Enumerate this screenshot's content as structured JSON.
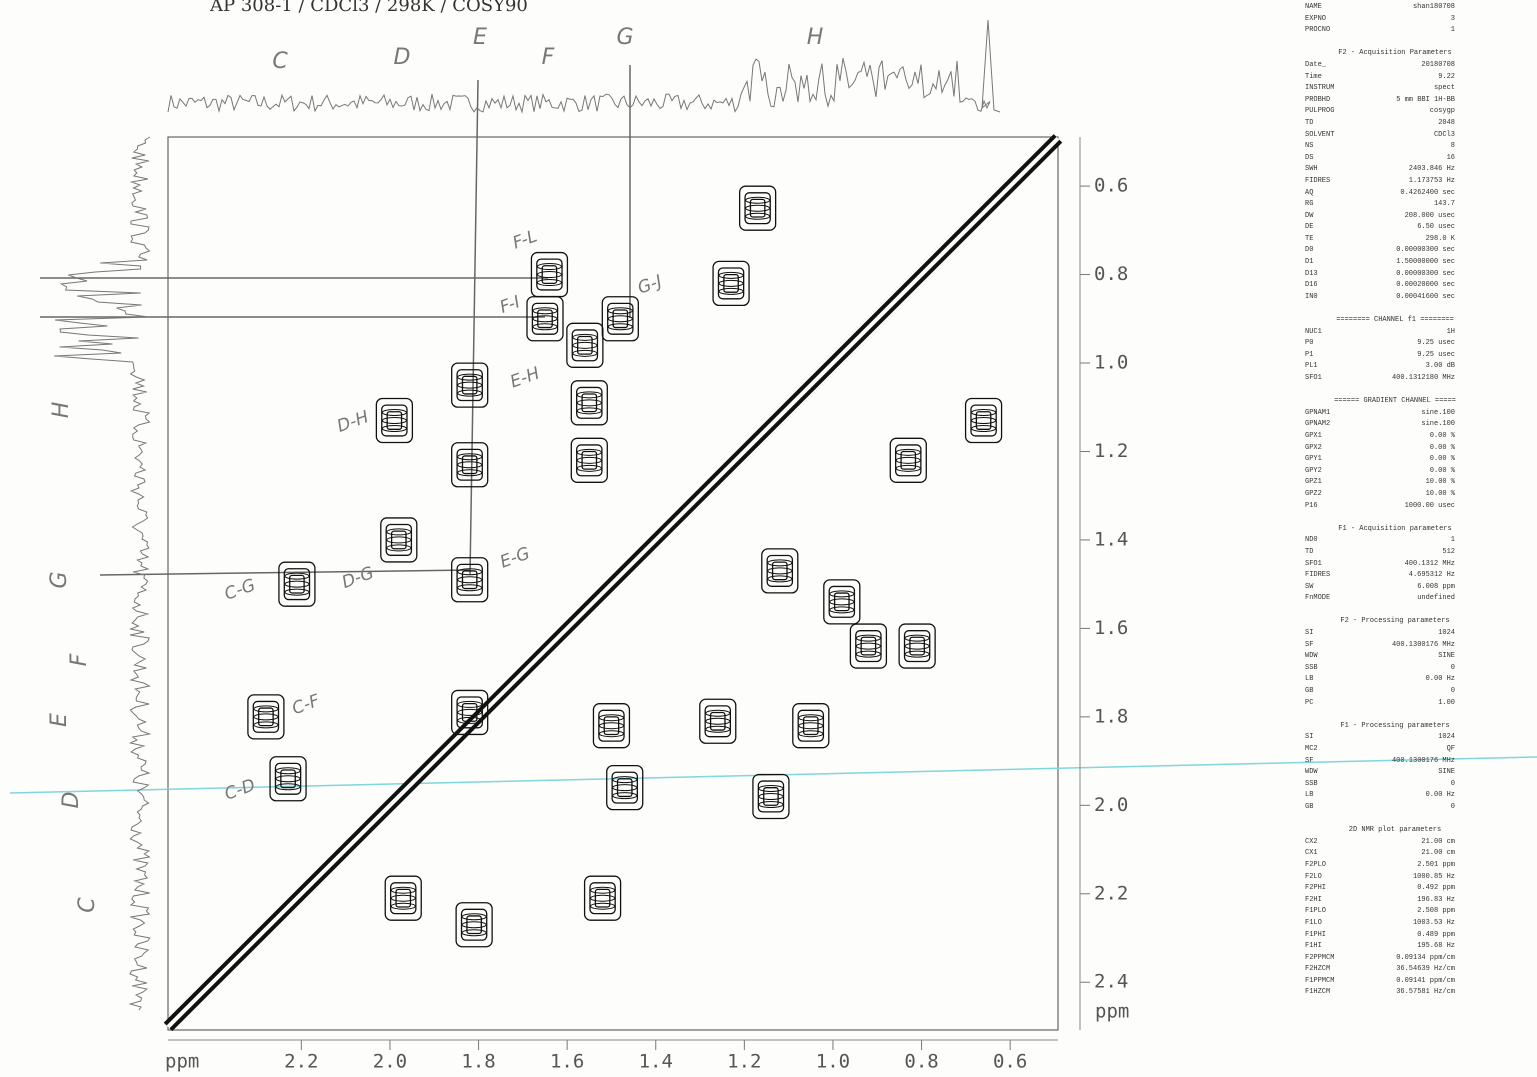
{
  "chart_data": {
    "type": "contour",
    "title": "AP 308-1 / CDCl3 / 298K / COSY90",
    "x_label": "ppm",
    "y_label": "ppm",
    "xlim": [
      2.501,
      0.492
    ],
    "ylim": [
      0.489,
      2.508
    ],
    "xticks": [
      2.2,
      {
        "value": 2,
        "label": "2.0"
      },
      1.8,
      1.6,
      1.4,
      1.2,
      {
        "value": 1,
        "label": "1.0"
      },
      0.8,
      0.6
    ],
    "yticks": [
      0.6,
      0.8,
      {
        "value": 1,
        "label": "1.0"
      },
      1.2,
      1.4,
      1.6,
      1.8,
      {
        "value": 2,
        "label": "2.0"
      },
      2.2,
      2.4
    ],
    "color": "#111111",
    "peaks": {
      "x": [
        1.64,
        1.65,
        1.56,
        1.48,
        1.23,
        1.82,
        1.99,
        1.82,
        1.98,
        1.82,
        2.21,
        1.82,
        2.28,
        2.23,
        1.5,
        1.26,
        1.05,
        1.47,
        1.14,
        1.52,
        1.81,
        1.97,
        0.83,
        0.81,
        0.92,
        0.66,
        1.17,
        1.55,
        1.55,
        1.12,
        0.98
      ],
      "y": [
        0.8,
        0.9,
        0.96,
        0.9,
        0.82,
        1.05,
        1.13,
        1.23,
        1.4,
        1.49,
        1.5,
        1.79,
        1.8,
        1.94,
        1.82,
        1.81,
        1.82,
        1.96,
        1.98,
        2.21,
        2.27,
        2.21,
        1.22,
        1.64,
        1.64,
        1.13,
        0.65,
        1.09,
        1.22,
        1.47,
        1.54
      ]
    },
    "top_labels": [
      "C",
      "D",
      "E",
      "F",
      "G",
      "H"
    ],
    "left_labels": [
      "H",
      "G",
      "F",
      "E",
      "D",
      "C"
    ],
    "annotations": [
      "F-L",
      "F-I",
      "G-J",
      "E-H",
      "D-H",
      "E-G",
      "D-G",
      "C-G",
      "C-F",
      "C-D"
    ]
  },
  "parameters": {
    "sections": [
      {
        "title": null,
        "rows": [
          [
            "NAME",
            "shan180708"
          ],
          [
            "EXPNO",
            "3"
          ],
          [
            "PROCNO",
            "1"
          ]
        ]
      },
      {
        "title": "F2 - Acquisition Parameters",
        "rows": [
          [
            "Date_",
            "20180708"
          ],
          [
            "Time",
            "9.22"
          ],
          [
            "INSTRUM",
            "spect"
          ],
          [
            "PROBHD",
            "5 mm BBI 1H-BB"
          ],
          [
            "PULPROG",
            "cosygp"
          ],
          [
            "TD",
            "2048"
          ],
          [
            "SOLVENT",
            "CDCl3"
          ],
          [
            "NS",
            "8"
          ],
          [
            "DS",
            "16"
          ],
          [
            "SWH",
            "2403.846 Hz"
          ],
          [
            "FIDRES",
            "1.173753 Hz"
          ],
          [
            "AQ",
            "0.4262400 sec"
          ],
          [
            "RG",
            "143.7"
          ],
          [
            "DW",
            "208.000 usec"
          ],
          [
            "DE",
            "6.50 usec"
          ],
          [
            "TE",
            "298.0 K"
          ],
          [
            "D0",
            "0.00000300 sec"
          ],
          [
            "D1",
            "1.50000000 sec"
          ],
          [
            "D13",
            "0.00000300 sec"
          ],
          [
            "D16",
            "0.00020000 sec"
          ],
          [
            "IN0",
            "0.00041600 sec"
          ]
        ]
      },
      {
        "title": "======== CHANNEL f1 ========",
        "rows": [
          [
            "NUC1",
            "1H"
          ],
          [
            "P0",
            "9.25 usec"
          ],
          [
            "P1",
            "9.25 usec"
          ],
          [
            "PL1",
            "3.00 dB"
          ],
          [
            "SFO1",
            "400.1312180 MHz"
          ]
        ]
      },
      {
        "title": "====== GRADIENT CHANNEL =====",
        "rows": [
          [
            "GPNAM1",
            "sine.100"
          ],
          [
            "GPNAM2",
            "sine.100"
          ],
          [
            "GPX1",
            "0.00 %"
          ],
          [
            "GPX2",
            "0.00 %"
          ],
          [
            "GPY1",
            "0.00 %"
          ],
          [
            "GPY2",
            "0.00 %"
          ],
          [
            "GPZ1",
            "10.00 %"
          ],
          [
            "GPZ2",
            "10.00 %"
          ],
          [
            "P16",
            "1000.00 usec"
          ]
        ]
      },
      {
        "title": "F1 - Acquisition parameters",
        "rows": [
          [
            "ND0",
            "1"
          ],
          [
            "TD",
            "512"
          ],
          [
            "SFO1",
            "400.1312 MHz"
          ],
          [
            "FIDRES",
            "4.695312 Hz"
          ],
          [
            "SW",
            "6.008 ppm"
          ],
          [
            "FnMODE",
            "undefined"
          ]
        ]
      },
      {
        "title": "F2 - Processing parameters",
        "rows": [
          [
            "SI",
            "1024"
          ],
          [
            "SF",
            "400.1300176 MHz"
          ],
          [
            "WDW",
            "SINE"
          ],
          [
            "SSB",
            "0"
          ],
          [
            "LB",
            "0.00 Hz"
          ],
          [
            "GB",
            "0"
          ],
          [
            "PC",
            "1.00"
          ]
        ]
      },
      {
        "title": "F1 - Processing parameters",
        "rows": [
          [
            "SI",
            "1024"
          ],
          [
            "MC2",
            "QF"
          ],
          [
            "SF",
            "400.1300176 MHz"
          ],
          [
            "WDW",
            "SINE"
          ],
          [
            "SSB",
            "0"
          ],
          [
            "LB",
            "0.00 Hz"
          ],
          [
            "GB",
            "0"
          ]
        ]
      },
      {
        "title": "2D NMR plot parameters",
        "rows": [
          [
            "CX2",
            "21.00 cm"
          ],
          [
            "CX1",
            "21.00 cm"
          ],
          [
            "F2PLO",
            "2.501 ppm"
          ],
          [
            "F2LO",
            "1000.85 Hz"
          ],
          [
            "F2PHI",
            "0.492 ppm"
          ],
          [
            "F2HI",
            "196.83 Hz"
          ],
          [
            "F1PLO",
            "2.508 ppm"
          ],
          [
            "F1LO",
            "1003.53 Hz"
          ],
          [
            "F1PHI",
            "0.489 ppm"
          ],
          [
            "F1HI",
            "195.68 Hz"
          ],
          [
            "F2PPMCM",
            "0.09134 ppm/cm"
          ],
          [
            "F2HZCM",
            "36.54639 Hz/cm"
          ],
          [
            "F1PPMCM",
            "0.09141 ppm/cm"
          ],
          [
            "F1HZCM",
            "36.57581 Hz/cm"
          ]
        ]
      }
    ]
  }
}
